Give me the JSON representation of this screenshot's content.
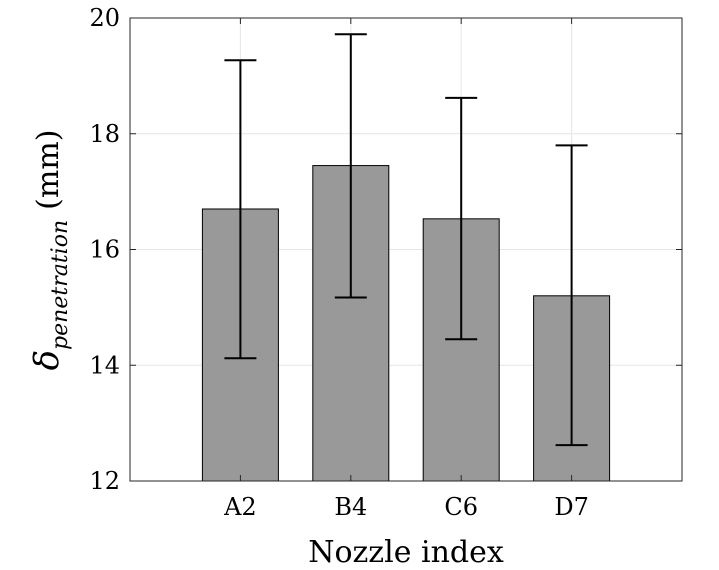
{
  "chart_data": {
    "type": "bar",
    "title": "",
    "xlabel": "Nozzle index",
    "ylabel": {
      "symbol": "δ",
      "subscript": "penetration",
      "unit": "(mm)"
    },
    "categories": [
      "A2",
      "B4",
      "C6",
      "D7"
    ],
    "values": [
      16.7,
      17.45,
      16.53,
      15.2
    ],
    "error_low": [
      14.12,
      15.17,
      14.45,
      12.62
    ],
    "error_high": [
      19.27,
      19.72,
      18.62,
      17.8
    ],
    "ylim": [
      12,
      20
    ],
    "yticks": [
      12,
      14,
      16,
      18,
      20
    ],
    "grid": true,
    "colors": {
      "bar_fill": "#999999",
      "bar_edge": "#000000",
      "grid": "#e6e6e6",
      "axis": "#262626",
      "errorbar": "#000000"
    }
  }
}
